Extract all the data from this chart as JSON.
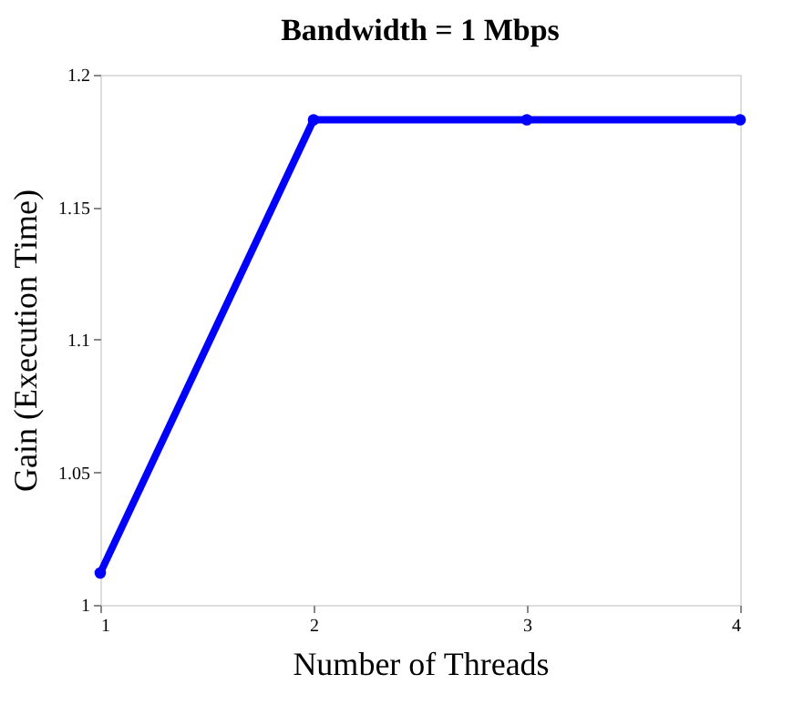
{
  "chart_data": {
    "type": "line",
    "title": "Bandwidth = 1 Mbps",
    "xlabel": "Number of Threads",
    "ylabel": "Gain (Execution Time)",
    "x": [
      1,
      2,
      3,
      4
    ],
    "series": [
      {
        "color": "#0000ff",
        "values": [
          1.012,
          1.183,
          1.183,
          1.183
        ]
      }
    ],
    "xlim": [
      1,
      4
    ],
    "xticks": [
      1,
      2,
      3,
      4
    ],
    "ylim": [
      1,
      1.2
    ],
    "yticks": [
      1,
      1.05,
      1.1,
      1.15,
      1.2
    ],
    "grid": false,
    "legend": false,
    "marker": "circle",
    "line_style": "solid"
  }
}
